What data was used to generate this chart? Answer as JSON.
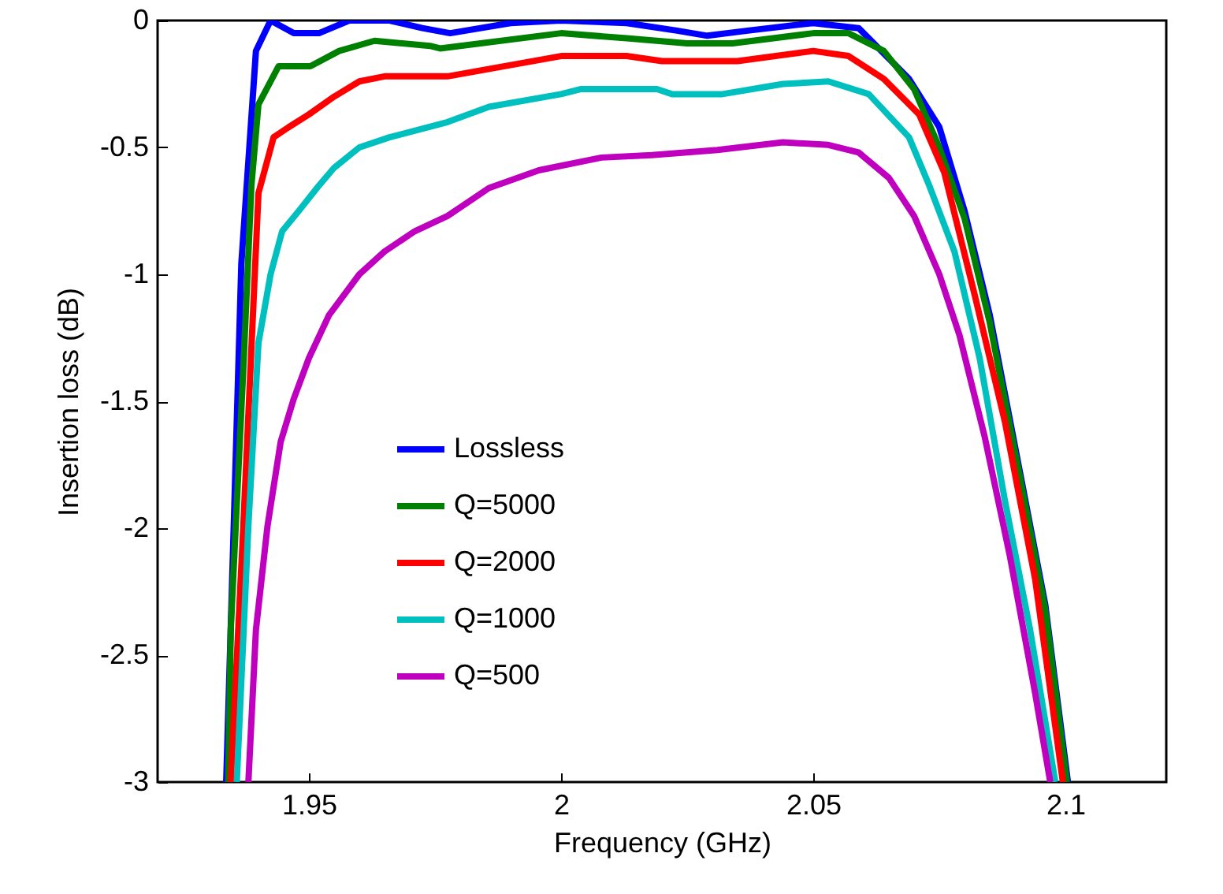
{
  "chart_data": {
    "type": "line",
    "xlabel": "Frequency (GHz)",
    "ylabel": "Insertion loss (dB)",
    "xlim": [
      1.92,
      2.12
    ],
    "ylim": [
      -3,
      0
    ],
    "xticks": [
      1.95,
      2,
      2.05,
      2.1
    ],
    "yticks": [
      -3,
      -2.5,
      -2,
      -1.5,
      -1,
      -0.5,
      0
    ],
    "legend": "center left",
    "series": [
      {
        "name": "Lossless",
        "color": "#0000ff",
        "x": [
          1.9336,
          1.9351,
          1.9366,
          1.9395,
          1.9424,
          1.947,
          1.952,
          1.958,
          1.966,
          1.9725,
          1.978,
          1.99,
          2.0,
          2.013,
          2.023,
          2.029,
          2.037,
          2.05,
          2.059,
          2.069,
          2.075,
          2.08,
          2.085,
          2.091,
          2.096,
          2.1005
        ],
        "values": [
          -3,
          -1.99,
          -0.96,
          -0.12,
          0,
          -0.05,
          -0.05,
          0,
          0,
          -0.03,
          -0.05,
          -0.01,
          0,
          -0.01,
          -0.04,
          -0.06,
          -0.04,
          -0.01,
          -0.03,
          -0.23,
          -0.42,
          -0.75,
          -1.16,
          -1.78,
          -2.3,
          -3
        ]
      },
      {
        "name": "Q=5000",
        "color": "#008000",
        "x": [
          1.934,
          1.9345,
          1.937,
          1.9386,
          1.94,
          1.944,
          1.9503,
          1.956,
          1.963,
          1.974,
          1.976,
          2.0,
          2.013,
          2.025,
          2.034,
          2.05,
          2.057,
          2.064,
          2.07,
          2.075,
          2.08,
          2.085,
          2.091,
          2.096,
          2.1003
        ],
        "values": [
          -3,
          -2.4,
          -1.37,
          -0.65,
          -0.33,
          -0.18,
          -0.18,
          -0.12,
          -0.08,
          -0.1,
          -0.11,
          -0.05,
          -0.07,
          -0.09,
          -0.09,
          -0.05,
          -0.05,
          -0.12,
          -0.27,
          -0.5,
          -0.78,
          -1.19,
          -1.8,
          -2.32,
          -3
        ]
      },
      {
        "name": "Q=2000",
        "color": "#ff0000",
        "x": [
          1.9345,
          1.937,
          1.9389,
          1.94,
          1.943,
          1.946,
          1.95,
          1.955,
          1.96,
          1.965,
          1.9775,
          2.0,
          2.013,
          2.02,
          2.035,
          2.05,
          2.057,
          2.064,
          2.071,
          2.076,
          2.082,
          2.088,
          2.094,
          2.0995
        ],
        "values": [
          -3,
          -1.99,
          -1.16,
          -0.68,
          -0.46,
          -0.42,
          -0.37,
          -0.3,
          -0.24,
          -0.22,
          -0.22,
          -0.14,
          -0.14,
          -0.16,
          -0.16,
          -0.12,
          -0.14,
          -0.23,
          -0.37,
          -0.6,
          -1.08,
          -1.58,
          -2.2,
          -3
        ]
      },
      {
        "name": "Q=1000",
        "color": "#00bfbf",
        "x": [
          1.9357,
          1.938,
          1.94,
          1.9424,
          1.9447,
          1.948,
          1.952,
          1.955,
          1.96,
          1.966,
          1.9775,
          1.9857,
          2.0,
          2.004,
          2.019,
          2.022,
          2.032,
          2.044,
          2.053,
          2.061,
          2.069,
          2.073,
          2.078,
          2.083,
          2.088,
          2.093,
          2.098
        ],
        "values": [
          -3,
          -1.99,
          -1.27,
          -1.0,
          -0.83,
          -0.75,
          -0.65,
          -0.58,
          -0.5,
          -0.46,
          -0.4,
          -0.34,
          -0.29,
          -0.27,
          -0.27,
          -0.29,
          -0.29,
          -0.25,
          -0.24,
          -0.29,
          -0.46,
          -0.65,
          -0.91,
          -1.33,
          -1.89,
          -2.4,
          -3
        ]
      },
      {
        "name": "Q=500",
        "color": "#bf00bf",
        "x": [
          1.938,
          1.9395,
          1.9418,
          1.9444,
          1.947,
          1.95,
          1.954,
          1.96,
          1.965,
          1.971,
          1.9775,
          1.9857,
          1.9956,
          2.008,
          2.018,
          2.031,
          2.044,
          2.053,
          2.059,
          2.065,
          2.07,
          2.075,
          2.079,
          2.084,
          2.089,
          2.094,
          2.097
        ],
        "values": [
          -3,
          -2.4,
          -1.99,
          -1.66,
          -1.49,
          -1.33,
          -1.16,
          -1.0,
          -0.91,
          -0.83,
          -0.77,
          -0.66,
          -0.59,
          -0.54,
          -0.53,
          -0.51,
          -0.48,
          -0.49,
          -0.52,
          -0.62,
          -0.77,
          -1.0,
          -1.24,
          -1.64,
          -2.11,
          -2.65,
          -3
        ]
      }
    ]
  }
}
